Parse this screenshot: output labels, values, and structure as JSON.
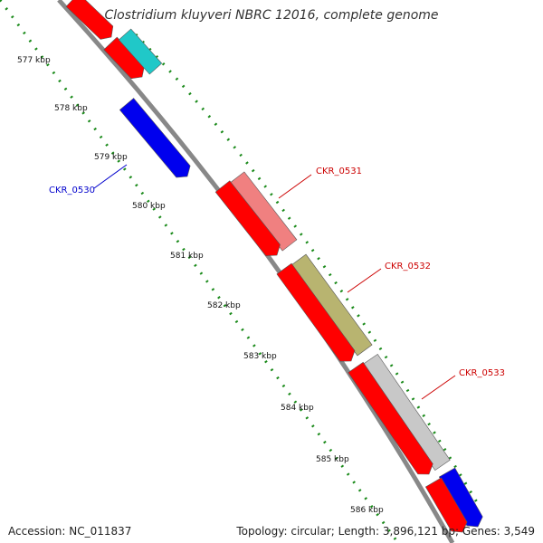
{
  "title": "Clostridium kluyveri NBRC 12016, complete genome",
  "footer": {
    "accession": "Accession: NC_011837",
    "summary": "Topology: circular; Length: 3,896,121 bp; Genes: 3,549"
  },
  "ticks": [
    {
      "label": "577 kbp"
    },
    {
      "label": "578 kbp"
    },
    {
      "label": "579 kbp"
    },
    {
      "label": "580 kbp"
    },
    {
      "label": "581 kbp"
    },
    {
      "label": "582 kbp"
    },
    {
      "label": "583 kbp"
    },
    {
      "label": "584 kbp"
    },
    {
      "label": "585 kbp"
    },
    {
      "label": "586 kbp"
    }
  ],
  "gene_labels": [
    {
      "name": "CKR_0530",
      "color": "#0000cc"
    },
    {
      "name": "CKR_0531",
      "color": "#cc0000"
    },
    {
      "name": "CKR_0532",
      "color": "#cc0000"
    },
    {
      "name": "CKR_0533",
      "color": "#cc0000"
    }
  ],
  "colors": {
    "cds": "#ff0000",
    "trna": "#20c8c8",
    "gene_pink": "#f08080",
    "gene_olive": "#b8b470",
    "gene_gray": "#c8c8c8",
    "gene_blue": "#0000ee",
    "backbone": "#888888",
    "tick_dots": "#1a8a1a"
  }
}
